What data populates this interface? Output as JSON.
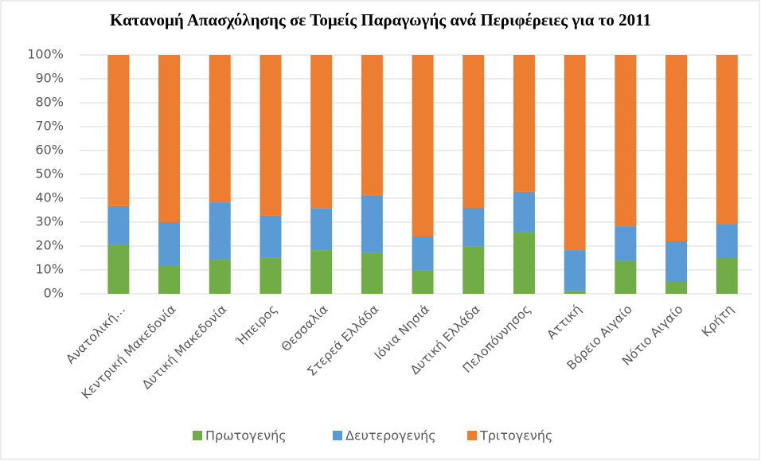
{
  "chart_data": {
    "type": "stacked_bar",
    "title": "Κατανομή Απασχόλησης σε Τομείς Παραγωγής ανά Περιφέρειες για το 2011",
    "categories": [
      "Ανατολική…",
      "Κεντρική Μακεδονία",
      "Δυτική Μακεδονία",
      "Ήπειρος",
      "Θεσσαλία",
      "Στερεά Ελλάδα",
      "Ιόνια Νησιά",
      "Δυτική Ελλάδα",
      "Πελοπόννησος",
      "Αττική",
      "Βόρειο Αιγαίο",
      "Νότιο Αιγαίο",
      "Κρήτη"
    ],
    "series": [
      {
        "name": "Πρωτογενής",
        "color": "#70ad47",
        "values": [
          20.7,
          12.0,
          14.3,
          15.3,
          18.3,
          17.3,
          9.7,
          19.7,
          25.7,
          1.3,
          13.7,
          5.0,
          15.0
        ]
      },
      {
        "name": "Δευτερογενής",
        "color": "#5b9bd5",
        "values": [
          16.0,
          18.0,
          24.0,
          17.4,
          17.4,
          23.7,
          14.3,
          16.3,
          17.0,
          17.0,
          14.6,
          17.0,
          14.3
        ]
      },
      {
        "name": "Τριτογενής",
        "color": "#ed7d31",
        "values": [
          63.3,
          70.0,
          61.7,
          67.3,
          64.3,
          59.0,
          76.0,
          64.0,
          57.3,
          81.7,
          71.7,
          78.0,
          70.7
        ]
      }
    ],
    "ylim": [
      0,
      100
    ],
    "yticks": [
      {
        "value": 0,
        "label": "0%"
      },
      {
        "value": 10,
        "label": "10%"
      },
      {
        "value": 20,
        "label": "20%"
      },
      {
        "value": 30,
        "label": "30%"
      },
      {
        "value": 40,
        "label": "40%"
      },
      {
        "value": 50,
        "label": "50%"
      },
      {
        "value": 60,
        "label": "60%"
      },
      {
        "value": 70,
        "label": "70%"
      },
      {
        "value": 80,
        "label": "80%"
      },
      {
        "value": 90,
        "label": "90%"
      },
      {
        "value": 100,
        "label": "100%"
      }
    ],
    "grid": true,
    "legend": "bottom"
  }
}
